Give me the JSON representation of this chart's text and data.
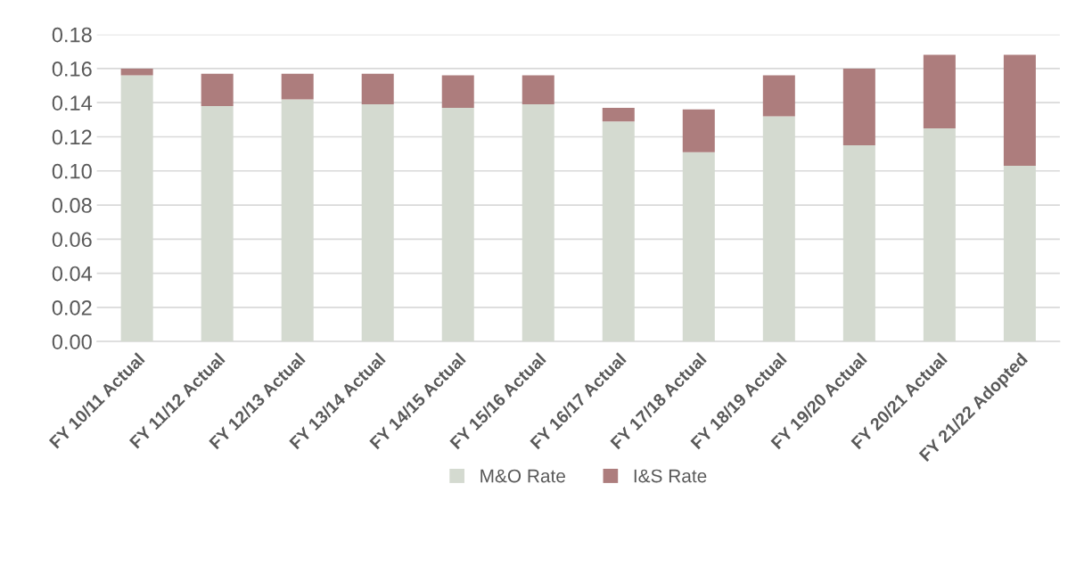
{
  "chart_data": {
    "type": "bar",
    "stacked": true,
    "categories": [
      "FY 10/11 Actual",
      "FY 11/12 Actual",
      "FY 12/13 Actual",
      "FY 13/14 Actual",
      "FY 14/15 Actual",
      "FY 15/16 Actual",
      "FY 16/17 Actual",
      "FY 17/18 Actual",
      "FY 18/19 Actual",
      "FY 19/20 Actual",
      "FY 20/21 Actual",
      "FY 21/22 Adopted"
    ],
    "series": [
      {
        "name": "M&O Rate",
        "color": "#d4dad0",
        "values": [
          0.156,
          0.138,
          0.142,
          0.139,
          0.137,
          0.139,
          0.129,
          0.111,
          0.132,
          0.115,
          0.125,
          0.103
        ]
      },
      {
        "name": "I&S Rate",
        "color": "#ad7d7d",
        "values": [
          0.004,
          0.019,
          0.015,
          0.018,
          0.019,
          0.017,
          0.008,
          0.025,
          0.024,
          0.045,
          0.043,
          0.065
        ]
      }
    ],
    "ylim": [
      0,
      0.18
    ],
    "yticks": [
      {
        "value": 0,
        "label": "0.00"
      },
      {
        "value": 0.02,
        "label": "0.02"
      },
      {
        "value": 0.04,
        "label": "0.04"
      },
      {
        "value": 0.06,
        "label": "0.06"
      },
      {
        "value": 0.08,
        "label": "0.08"
      },
      {
        "value": 0.1,
        "label": "0.10"
      },
      {
        "value": 0.12,
        "label": "0.12"
      },
      {
        "value": 0.14,
        "label": "0.14"
      },
      {
        "value": 0.16,
        "label": "0.16"
      },
      {
        "value": 0.18,
        "label": "0.18"
      }
    ],
    "grid": "y",
    "legend": "bottom"
  }
}
